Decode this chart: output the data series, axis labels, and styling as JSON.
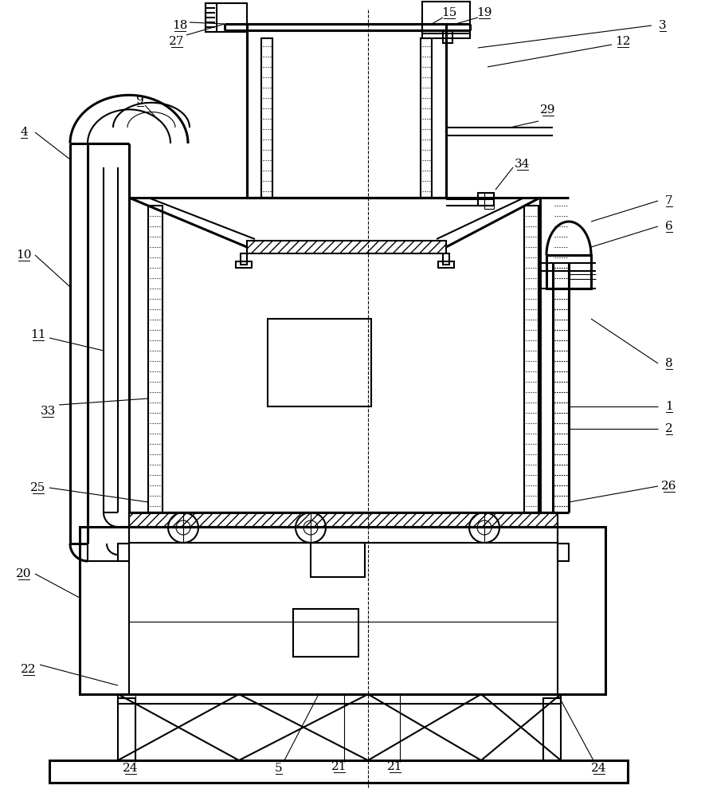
{
  "bg": "#ffffff",
  "lc": "#000000",
  "lw": 1.5,
  "tlw": 0.8,
  "thw": 2.2
}
